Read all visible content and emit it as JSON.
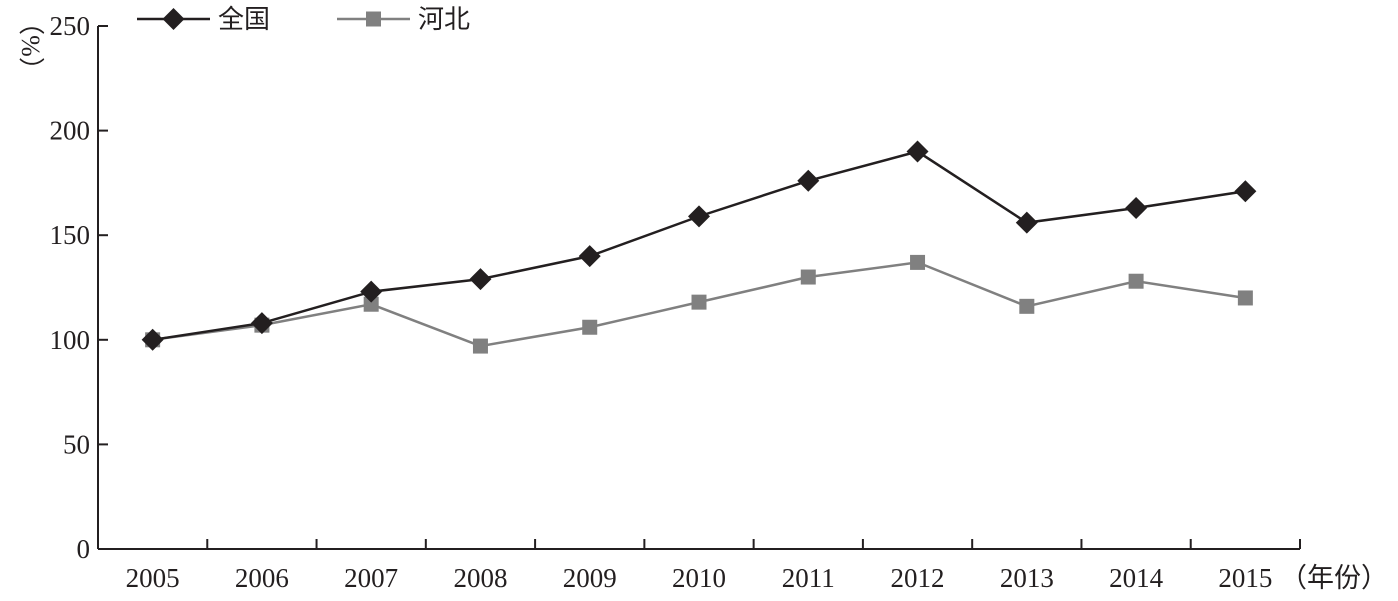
{
  "chart_data": {
    "type": "line",
    "title": "",
    "ylabel": "（%）",
    "xlabel": "（年份）",
    "ylim": [
      0,
      250
    ],
    "yticks": [
      0,
      50,
      100,
      150,
      200,
      250
    ],
    "categories": [
      "2005",
      "2006",
      "2007",
      "2008",
      "2009",
      "2010",
      "2011",
      "2012",
      "2013",
      "2014",
      "2015"
    ],
    "legend_position": "top-left",
    "grid": false,
    "series": [
      {
        "name": "全国",
        "marker": "diamond",
        "color": "#231f20",
        "values": [
          100,
          108,
          123,
          129,
          140,
          159,
          176,
          190,
          156,
          163,
          171
        ]
      },
      {
        "name": "河北",
        "marker": "square",
        "color": "#808080",
        "values": [
          100,
          107,
          117,
          97,
          106,
          118,
          130,
          137,
          116,
          128,
          120
        ]
      }
    ]
  }
}
